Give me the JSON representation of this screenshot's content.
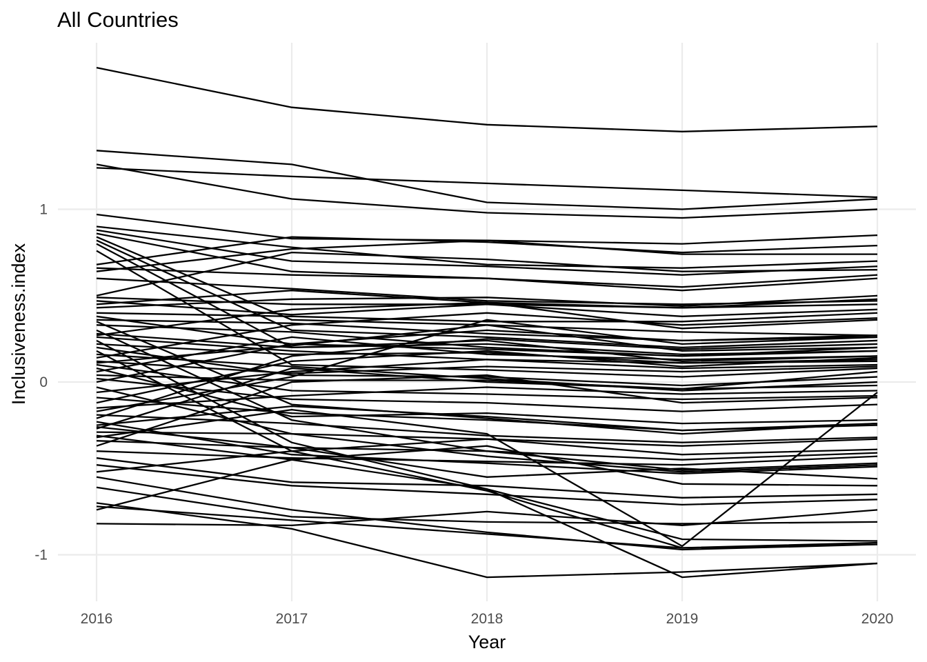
{
  "chart_data": {
    "type": "line",
    "title": "All Countries",
    "xlabel": "Year",
    "ylabel": "Inclusiveness.index",
    "x": [
      2016,
      2017,
      2018,
      2019,
      2020
    ],
    "x_tick_labels": [
      "2016",
      "2017",
      "2018",
      "2019",
      "2020"
    ],
    "y_ticks": [
      -1,
      0,
      1
    ],
    "y_tick_labels": [
      "-1",
      "0",
      "1"
    ],
    "ylim": [
      -1.27,
      1.97
    ],
    "grid": true,
    "legend": "none",
    "line_color": "#000000",
    "series": [
      {
        "values": [
          1.82,
          1.59,
          1.49,
          1.45,
          1.48
        ]
      },
      {
        "values": [
          1.34,
          1.26,
          1.04,
          1.0,
          1.06
        ]
      },
      {
        "values": [
          1.26,
          1.06,
          0.98,
          0.95,
          1.0
        ]
      },
      {
        "values": [
          1.24,
          1.19,
          1.15,
          1.11,
          1.07
        ]
      },
      {
        "values": [
          0.97,
          0.83,
          0.82,
          0.8,
          0.85
        ]
      },
      {
        "values": [
          0.9,
          0.78,
          0.68,
          0.66,
          0.7
        ]
      },
      {
        "values": [
          0.88,
          0.7,
          0.67,
          0.62,
          0.67
        ]
      },
      {
        "values": [
          0.86,
          0.64,
          0.6,
          0.55,
          0.62
        ]
      },
      {
        "values": [
          0.84,
          0.36,
          0.33,
          0.29,
          0.27
        ]
      },
      {
        "values": [
          0.82,
          0.3,
          0.26,
          0.2,
          0.24
        ]
      },
      {
        "values": [
          0.8,
          0.2,
          0.22,
          0.16,
          0.18
        ]
      },
      {
        "values": [
          0.76,
          0.1,
          0.07,
          0.03,
          0.08
        ]
      },
      {
        "values": [
          0.68,
          0.84,
          0.81,
          0.75,
          0.79
        ]
      },
      {
        "values": [
          0.66,
          0.62,
          0.6,
          0.53,
          0.6
        ]
      },
      {
        "values": [
          0.64,
          0.77,
          0.82,
          0.74,
          0.74
        ]
      },
      {
        "values": [
          0.6,
          0.54,
          0.47,
          0.45,
          0.47
        ]
      },
      {
        "values": [
          0.5,
          0.75,
          0.71,
          0.64,
          0.65
        ]
      },
      {
        "values": [
          0.49,
          0.45,
          0.45,
          0.43,
          0.45
        ]
      },
      {
        "values": [
          0.47,
          0.39,
          0.45,
          0.38,
          0.42
        ]
      },
      {
        "values": [
          0.45,
          0.53,
          0.46,
          0.43,
          0.48
        ]
      },
      {
        "values": [
          0.43,
          0.48,
          0.49,
          0.44,
          0.5
        ]
      },
      {
        "values": [
          0.4,
          0.38,
          0.35,
          0.35,
          0.4
        ]
      },
      {
        "values": [
          0.38,
          0.22,
          0.19,
          0.15,
          0.2
        ]
      },
      {
        "values": [
          0.36,
          0.34,
          0.28,
          0.24,
          0.26
        ]
      },
      {
        "values": [
          0.35,
          -0.13,
          -0.21,
          -0.3,
          -0.24
        ]
      },
      {
        "values": [
          0.33,
          0.29,
          0.2,
          0.15,
          0.18
        ]
      },
      {
        "values": [
          0.3,
          -0.22,
          -0.4,
          -0.51,
          -0.47
        ]
      },
      {
        "values": [
          0.28,
          0.2,
          0.24,
          0.12,
          0.15
        ]
      },
      {
        "values": [
          0.26,
          0.18,
          0.13,
          0.08,
          0.1
        ]
      },
      {
        "values": [
          0.24,
          -0.35,
          -0.62,
          -0.91,
          -0.92
        ]
      },
      {
        "values": [
          0.22,
          0.16,
          0.17,
          0.11,
          0.13
        ]
      },
      {
        "values": [
          0.2,
          0.04,
          0.03,
          -0.02,
          0.03
        ]
      },
      {
        "values": [
          0.18,
          -0.4,
          -0.63,
          -0.96,
          -0.94
        ]
      },
      {
        "values": [
          0.16,
          0.09,
          0.02,
          -0.05,
          0.0
        ]
      },
      {
        "values": [
          0.14,
          0.33,
          0.4,
          0.33,
          0.37
        ]
      },
      {
        "values": [
          0.12,
          0.05,
          0.09,
          0.06,
          0.09
        ]
      },
      {
        "values": [
          0.1,
          -0.05,
          -0.07,
          -0.1,
          -0.08
        ]
      },
      {
        "values": [
          0.08,
          -0.2,
          -0.18,
          -0.24,
          -0.22
        ]
      },
      {
        "values": [
          0.06,
          0.26,
          0.16,
          0.13,
          0.15
        ]
      },
      {
        "values": [
          0.04,
          0.01,
          0.01,
          -0.04,
          -0.02
        ]
      },
      {
        "values": [
          0.02,
          -0.1,
          -0.12,
          -0.17,
          -0.13
        ]
      },
      {
        "values": [
          0.0,
          0.22,
          0.3,
          0.24,
          0.27
        ]
      },
      {
        "values": [
          -0.03,
          -0.3,
          -0.33,
          -0.37,
          -0.33
        ]
      },
      {
        "values": [
          -0.06,
          0.06,
          0.13,
          0.11,
          0.12
        ]
      },
      {
        "values": [
          -0.09,
          -0.18,
          -0.22,
          -0.28,
          -0.25
        ]
      },
      {
        "values": [
          -0.12,
          0.12,
          0.18,
          0.09,
          0.14
        ]
      },
      {
        "values": [
          -0.15,
          -0.08,
          -0.03,
          -0.07,
          -0.05
        ]
      },
      {
        "values": [
          -0.17,
          0.03,
          0.36,
          0.22,
          0.26
        ]
      },
      {
        "values": [
          -0.19,
          -0.24,
          -0.31,
          -0.35,
          -0.32
        ]
      },
      {
        "values": [
          -0.21,
          0.15,
          0.25,
          0.19,
          0.22
        ]
      },
      {
        "values": [
          -0.23,
          -0.42,
          -0.47,
          -0.53,
          -0.49
        ]
      },
      {
        "values": [
          -0.25,
          -0.14,
          -0.2,
          -0.28,
          -0.24
        ]
      },
      {
        "values": [
          -0.27,
          0.08,
          0.0,
          -0.04,
          0.06
        ]
      },
      {
        "values": [
          -0.29,
          -0.3,
          -0.43,
          -0.52,
          -0.48
        ]
      },
      {
        "values": [
          -0.31,
          -0.45,
          -0.62,
          -1.13,
          -1.05
        ]
      },
      {
        "values": [
          -0.34,
          -0.38,
          -0.4,
          -0.45,
          -0.41
        ]
      },
      {
        "values": [
          -0.37,
          0.0,
          0.04,
          -0.12,
          -0.09
        ]
      },
      {
        "values": [
          -0.4,
          -0.44,
          -0.46,
          -0.48,
          -0.43
        ]
      },
      {
        "values": [
          -0.44,
          -0.58,
          -0.6,
          -0.67,
          -0.65
        ]
      },
      {
        "values": [
          -0.48,
          -0.6,
          -0.65,
          -0.71,
          -0.68
        ]
      },
      {
        "values": [
          -0.52,
          -0.4,
          -0.33,
          -0.42,
          -0.39
        ]
      },
      {
        "values": [
          -0.55,
          -0.74,
          -0.87,
          -0.97,
          -0.94
        ]
      },
      {
        "values": [
          -0.61,
          -0.78,
          -0.81,
          -0.82,
          -0.81
        ]
      },
      {
        "values": [
          -0.7,
          -0.85,
          -1.13,
          -1.1,
          -1.05
        ]
      },
      {
        "values": [
          -0.74,
          -0.45,
          -0.37,
          -0.59,
          -0.6
        ]
      },
      {
        "values": [
          -0.82,
          -0.83,
          -0.75,
          -0.83,
          -0.74
        ]
      },
      {
        "values": [
          -0.72,
          -0.8,
          -0.88,
          -0.96,
          -0.93
        ]
      },
      {
        "values": [
          -0.26,
          -0.38,
          -0.55,
          -0.5,
          -0.56
        ]
      },
      {
        "values": [
          -0.32,
          -0.16,
          -0.3,
          -0.95,
          -0.06
        ]
      },
      {
        "values": [
          0.11,
          0.21,
          0.33,
          0.18,
          0.2
        ]
      },
      {
        "values": [
          0.27,
          0.42,
          0.46,
          0.31,
          0.36
        ]
      }
    ]
  }
}
